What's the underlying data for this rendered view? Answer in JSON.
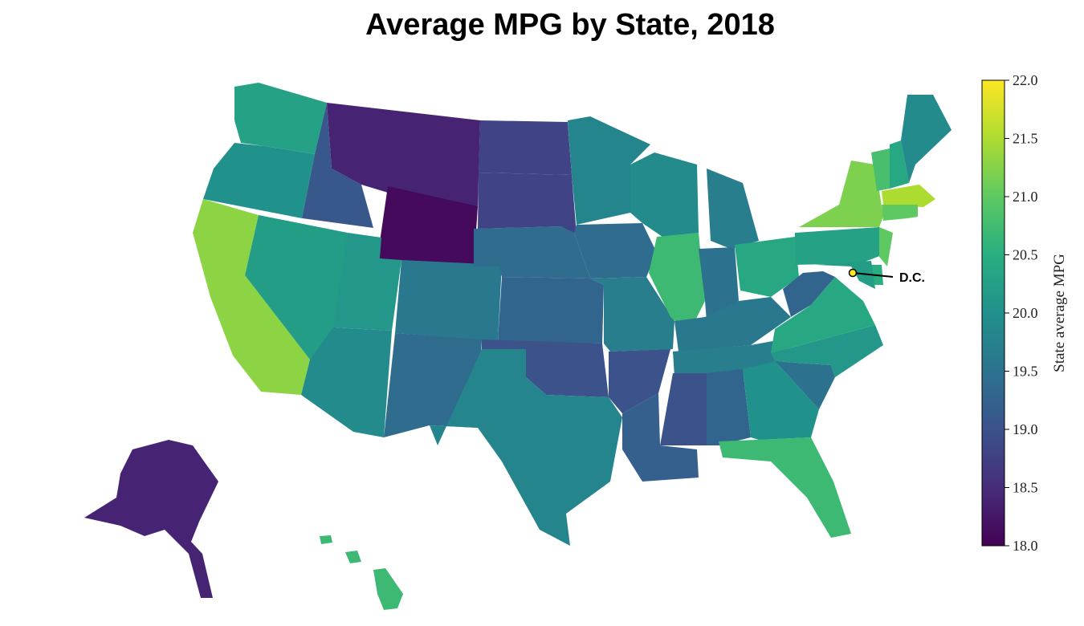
{
  "chart_data": {
    "type": "choropleth",
    "title": "Average MPG by State, 2018",
    "colorbar": {
      "label": "State average MPG",
      "range": [
        18.0,
        22.0
      ],
      "ticks": [
        "18.0",
        "18.5",
        "19.0",
        "19.5",
        "20.0",
        "20.5",
        "21.0",
        "21.5",
        "22.0"
      ],
      "colormap": "viridis"
    },
    "annotation": {
      "label": "D.C.",
      "value": 22.0
    },
    "values": {
      "WA": 20.3,
      "OR": 20.0,
      "CA": 21.3,
      "NV": 20.2,
      "ID": 19.1,
      "MT": 18.4,
      "WY": 18.1,
      "UT": 20.1,
      "AZ": 19.9,
      "CO": 19.6,
      "NM": 19.4,
      "ND": 18.8,
      "SD": 18.8,
      "NE": 19.4,
      "KS": 19.3,
      "OK": 19.0,
      "TX": 19.8,
      "MN": 19.8,
      "IA": 19.4,
      "MO": 19.7,
      "AR": 19.0,
      "LA": 19.2,
      "WI": 19.9,
      "IL": 20.7,
      "MI": 19.7,
      "IN": 19.5,
      "OH": 20.4,
      "KY": 19.6,
      "TN": 19.7,
      "MS": 19.0,
      "AL": 19.3,
      "GA": 20.0,
      "FL": 20.7,
      "SC": 19.5,
      "NC": 20.1,
      "VA": 20.4,
      "WV": 19.3,
      "PA": 20.3,
      "NY": 21.2,
      "VT": 20.8,
      "NH": 20.4,
      "ME": 19.9,
      "MA": 21.5,
      "CT": 21.0,
      "RI": 21.0,
      "NJ": 21.0,
      "DE": 20.5,
      "MD": 20.2,
      "AK": 18.4,
      "HI": 20.7
    }
  }
}
